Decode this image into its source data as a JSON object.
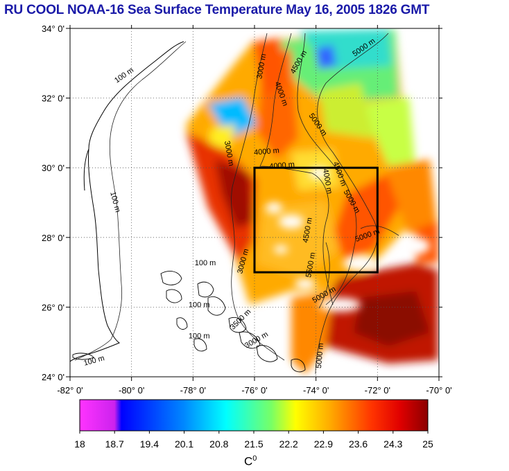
{
  "title": "RU COOL  NOAA-16 Sea Surface Temperature May 16, 2005 1826 GMT",
  "map": {
    "lon_range": [
      -82,
      -70
    ],
    "lat_range": [
      24,
      34
    ],
    "x_ticks": [
      "-82° 0'",
      "-80° 0'",
      "-78° 0'",
      "-76° 0'",
      "-74° 0'",
      "-72° 0'",
      "-70° 0'"
    ],
    "y_ticks": [
      "34° 0'",
      "32° 0'",
      "30° 0'",
      "28° 0'",
      "26° 0'",
      "24° 0'"
    ],
    "grid": true,
    "study_box": {
      "lon": [
        -76,
        -72
      ],
      "lat": [
        27,
        30
      ]
    },
    "contour_labels": [
      {
        "text": "100 m",
        "lon": -80.2,
        "lat": 32.6,
        "rot": -35
      },
      {
        "text": "100 m",
        "lon": -80.6,
        "lat": 29.0,
        "rot": 75
      },
      {
        "text": "100 m",
        "lon": -77.6,
        "lat": 27.2,
        "rot": 0
      },
      {
        "text": "100 m",
        "lon": -77.8,
        "lat": 26.0,
        "rot": 0
      },
      {
        "text": "100 m",
        "lon": -77.8,
        "lat": 25.1,
        "rot": 0
      },
      {
        "text": "100 m",
        "lon": -81.2,
        "lat": 24.4,
        "rot": -15
      },
      {
        "text": "3000 m",
        "lon": -75.7,
        "lat": 32.9,
        "rot": -80
      },
      {
        "text": "4500 m",
        "lon": -74.5,
        "lat": 33.0,
        "rot": -60
      },
      {
        "text": "5000 m",
        "lon": -72.4,
        "lat": 33.4,
        "rot": -35
      },
      {
        "text": "4000 m",
        "lon": -75.2,
        "lat": 32.1,
        "rot": 70
      },
      {
        "text": "5000 m",
        "lon": -74.0,
        "lat": 31.2,
        "rot": 55
      },
      {
        "text": "4000 m",
        "lon": -75.6,
        "lat": 30.4,
        "rot": -5
      },
      {
        "text": "4000 m",
        "lon": -75.1,
        "lat": 30.0,
        "rot": -5
      },
      {
        "text": "3000 m",
        "lon": -76.9,
        "lat": 30.4,
        "rot": 80
      },
      {
        "text": "4500 m",
        "lon": -73.3,
        "lat": 29.8,
        "rot": 70
      },
      {
        "text": "4000 m",
        "lon": -73.7,
        "lat": 29.6,
        "rot": 80
      },
      {
        "text": "5000 m",
        "lon": -72.9,
        "lat": 29.0,
        "rot": 60
      },
      {
        "text": "4500 m",
        "lon": -74.2,
        "lat": 28.2,
        "rot": -80
      },
      {
        "text": "5000 m",
        "lon": -72.3,
        "lat": 28.0,
        "rot": -20
      },
      {
        "text": "5500 m",
        "lon": -74.1,
        "lat": 27.2,
        "rot": -80
      },
      {
        "text": "5000 m",
        "lon": -73.7,
        "lat": 26.3,
        "rot": -30
      },
      {
        "text": "3000 m",
        "lon": -76.3,
        "lat": 27.3,
        "rot": -75
      },
      {
        "text": "3500 m",
        "lon": -76.4,
        "lat": 25.6,
        "rot": -45
      },
      {
        "text": "3000 m",
        "lon": -75.9,
        "lat": 25.0,
        "rot": -30
      },
      {
        "text": "5000 m",
        "lon": -73.8,
        "lat": 24.6,
        "rot": -85
      }
    ]
  },
  "colorbar": {
    "min": 18,
    "max": 25,
    "tick_values": [
      18,
      18.7,
      19.4,
      20.1,
      20.8,
      21.5,
      22.2,
      22.9,
      23.6,
      24.3,
      25
    ],
    "tick_labels": [
      "18",
      "18.7",
      "19.4",
      "20.1",
      "20.8",
      "21.5",
      "22.2",
      "22.9",
      "23.6",
      "24.3",
      "25"
    ],
    "unit": "C",
    "unit_sup": "0",
    "stops": [
      "#ff33ff",
      "#cc22ee",
      "#0000ff",
      "#0088ff",
      "#00ffff",
      "#77ff66",
      "#ffff00",
      "#ffaa00",
      "#ff3300",
      "#e00000",
      "#8b0000"
    ]
  }
}
